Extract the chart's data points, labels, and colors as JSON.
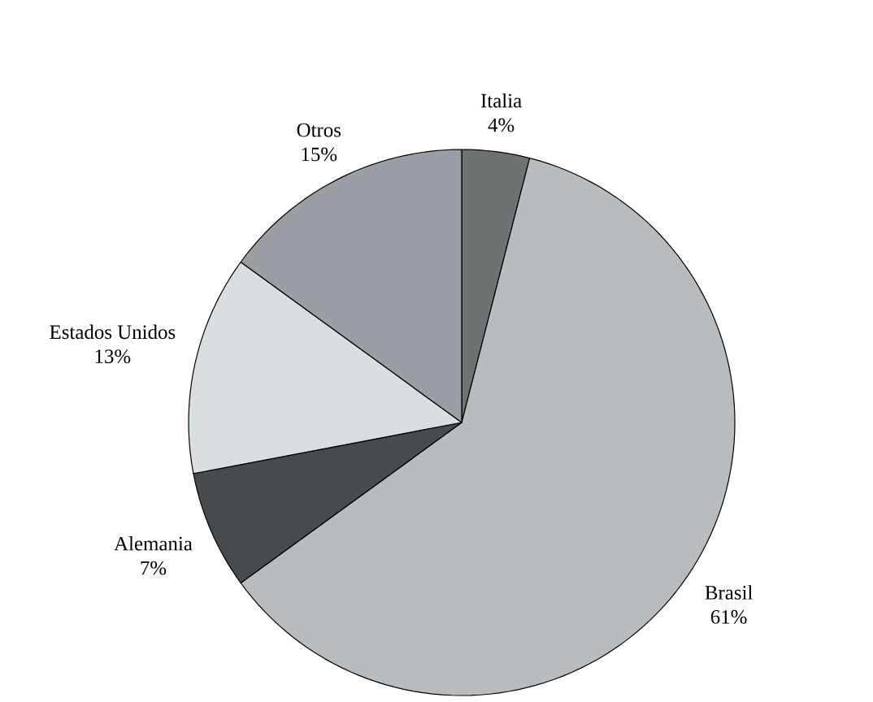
{
  "chart_data": {
    "type": "pie",
    "categories": [
      "Italia",
      "Brasil",
      "Alemania",
      "Estados Unidos",
      "Otros"
    ],
    "values": [
      4,
      61,
      7,
      13,
      15
    ],
    "value_labels": [
      "4%",
      "61%",
      "7%",
      "13%",
      "15%"
    ],
    "colors": [
      "#6d7372",
      "#b8bcbf",
      "#474b4e",
      "#d9dee0",
      "#9a9ea5"
    ]
  }
}
